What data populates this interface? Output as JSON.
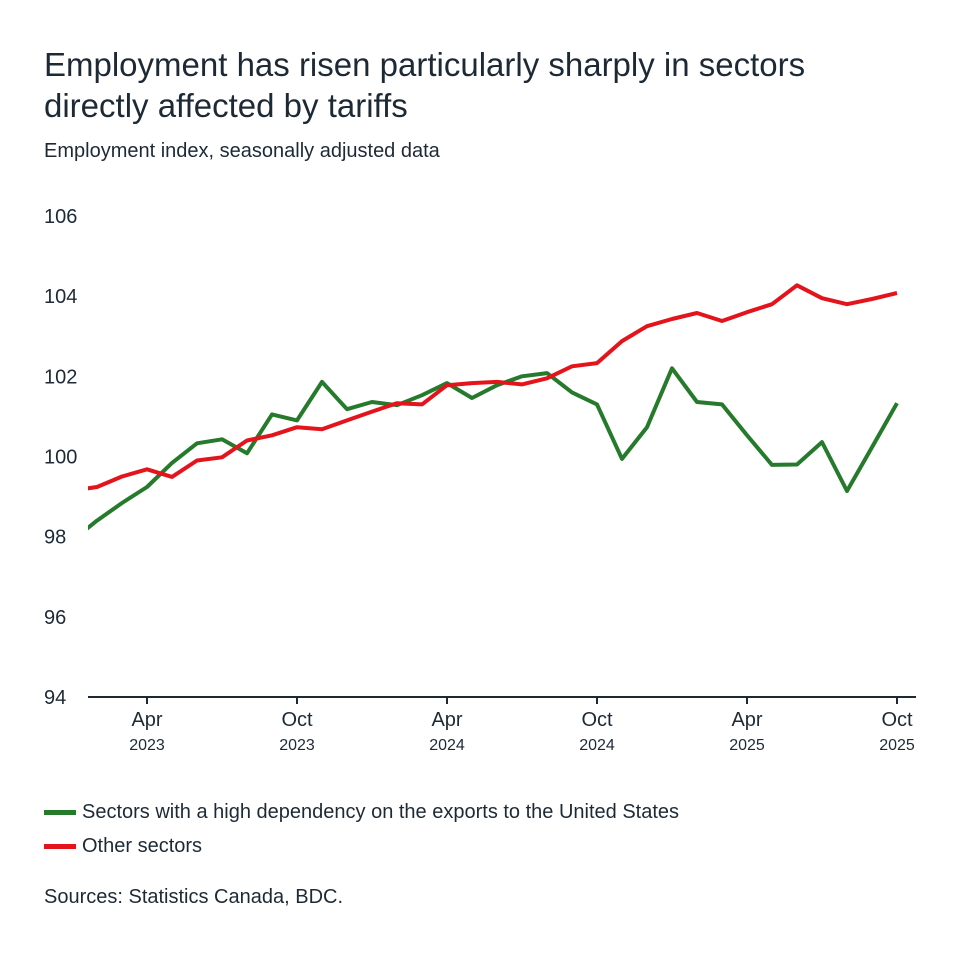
{
  "title": "Employment has risen particularly sharply in sectors directly affected by tariffs",
  "subtitle": "Employment index, seasonally adjusted data",
  "source": "Sources: Statistics Canada, BDC.",
  "chart_data": {
    "type": "line",
    "title": "Employment has risen particularly sharply in sectors directly affected by tariffs",
    "ylabel": "Employment index, seasonally adjusted data",
    "ylim": [
      94,
      106
    ],
    "yticks": [
      "94",
      "96",
      "98",
      "100",
      "102",
      "104",
      "106"
    ],
    "xticks": [
      {
        "month": "2023-04",
        "label": "Apr",
        "year": "2023"
      },
      {
        "month": "2023-10",
        "label": "Oct",
        "year": "2023"
      },
      {
        "month": "2024-04",
        "label": "Apr",
        "year": "2024"
      },
      {
        "month": "2024-10",
        "label": "Oct",
        "year": "2024"
      },
      {
        "month": "2025-04",
        "label": "Apr",
        "year": "2025"
      },
      {
        "month": "2025-10",
        "label": "Oct",
        "year": "2025"
      }
    ],
    "grid": false,
    "legend_position": "bottom-left",
    "x": [
      "2023-01",
      "2023-02",
      "2023-03",
      "2023-04",
      "2023-05",
      "2023-06",
      "2023-07",
      "2023-08",
      "2023-09",
      "2023-10",
      "2023-11",
      "2023-12",
      "2024-01",
      "2024-02",
      "2024-03",
      "2024-04",
      "2024-05",
      "2024-06",
      "2024-07",
      "2024-08",
      "2024-09",
      "2024-10",
      "2024-11",
      "2024-12",
      "2025-01",
      "2025-02",
      "2025-03",
      "2025-04",
      "2025-05",
      "2025-06",
      "2025-07",
      "2025-08",
      "2025-09",
      "2025-10"
    ],
    "series": [
      {
        "name": "Sectors with a high dependency on the exports to the United States",
        "color": "#257a2b",
        "values": [
          97.9,
          98.4,
          98.84,
          99.24,
          99.84,
          100.33,
          100.43,
          100.08,
          101.05,
          100.9,
          101.86,
          101.18,
          101.36,
          101.28,
          101.53,
          101.83,
          101.46,
          101.78,
          102.0,
          102.08,
          101.6,
          101.3,
          99.94,
          100.73,
          102.2,
          101.36,
          101.3,
          100.53,
          99.79,
          99.8,
          100.36,
          99.14,
          100.23,
          101.33
        ]
      },
      {
        "name": "Other sectors",
        "color": "#e3141b",
        "values": [
          99.15,
          99.24,
          99.5,
          99.68,
          99.49,
          99.9,
          99.98,
          100.4,
          100.53,
          100.73,
          100.68,
          100.9,
          101.12,
          101.33,
          101.3,
          101.78,
          101.83,
          101.86,
          101.8,
          101.95,
          102.25,
          102.33,
          102.88,
          103.25,
          103.43,
          103.58,
          103.38,
          103.6,
          103.8,
          104.27,
          103.95,
          103.8,
          103.93,
          104.08
        ]
      }
    ]
  }
}
